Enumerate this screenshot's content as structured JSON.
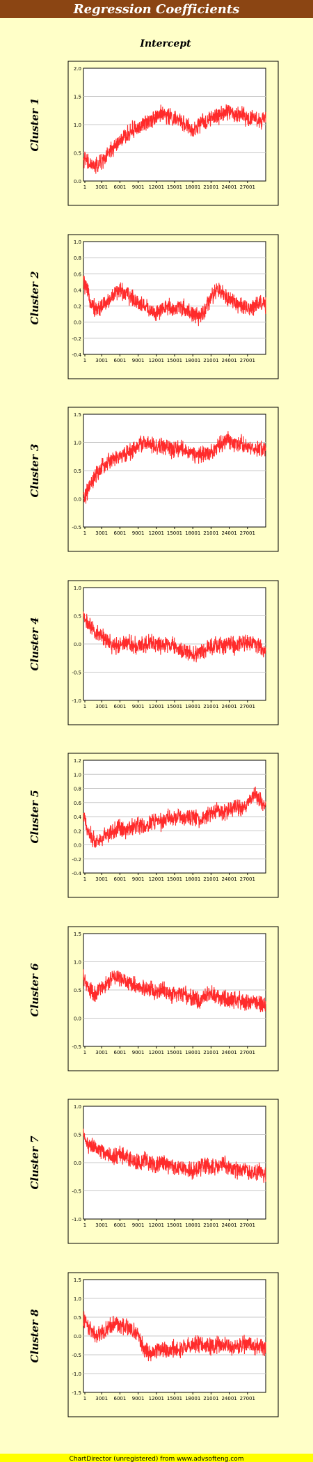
{
  "header": {
    "title": "Regression Coefficients"
  },
  "subtitle": "Intercept",
  "footer": {
    "text": "ChartDirector (unregistered) from www.advsofteng.com"
  },
  "colors": {
    "background": "#ffffc8",
    "header": "#8b4513",
    "header_text": "#ffffff",
    "line": "#ff2b2b",
    "grid": "#c8c8c8",
    "footer_bg": "#ffff00"
  },
  "chart_data": [
    {
      "type": "line",
      "title": "Cluster 1",
      "x_tick_labels": [
        "1",
        "3001",
        "6001",
        "9001",
        "12001",
        "15001",
        "18001",
        "21001",
        "24001",
        "27001"
      ],
      "y_tick_labels": [
        "0.0",
        "0.5",
        "1.0",
        "1.5",
        "2.0"
      ],
      "ylim": [
        0.0,
        2.0
      ],
      "xlim": [
        1,
        30000
      ],
      "grid": true,
      "series": [
        {
          "x": [
            1,
            1000,
            2000,
            3000,
            4000,
            5000,
            6000,
            7000,
            8000,
            9000,
            10000,
            11000,
            12000,
            13000,
            14000,
            15000,
            16000,
            17000,
            18000,
            19000,
            20000,
            21000,
            22000,
            23000,
            24000,
            25000,
            26000,
            27000,
            28000,
            29000,
            30000
          ],
          "y": [
            0.4,
            0.3,
            0.25,
            0.35,
            0.45,
            0.6,
            0.7,
            0.8,
            0.9,
            0.95,
            1.0,
            1.1,
            1.15,
            1.2,
            1.15,
            1.1,
            1.05,
            1.0,
            0.85,
            1.0,
            1.05,
            1.1,
            1.15,
            1.2,
            1.25,
            1.15,
            1.2,
            1.1,
            1.15,
            1.05,
            1.1
          ]
        }
      ]
    },
    {
      "type": "line",
      "title": "Cluster 2",
      "x_tick_labels": [
        "1",
        "3001",
        "6001",
        "9001",
        "12001",
        "15001",
        "18001",
        "21001",
        "24001",
        "27001"
      ],
      "y_tick_labels": [
        "-0.4",
        "-0.2",
        "0.0",
        "0.2",
        "0.4",
        "0.6",
        "0.8",
        "1.0"
      ],
      "ylim": [
        -0.4,
        1.0
      ],
      "xlim": [
        1,
        30000
      ],
      "grid": true,
      "series": [
        {
          "x": [
            1,
            1000,
            2000,
            3000,
            4000,
            5000,
            6000,
            7000,
            8000,
            9000,
            10000,
            11000,
            12000,
            13000,
            14000,
            15000,
            16000,
            17000,
            18000,
            19000,
            20000,
            21000,
            22000,
            23000,
            24000,
            25000,
            26000,
            27000,
            28000,
            29000,
            30000
          ],
          "y": [
            0.5,
            0.3,
            0.15,
            0.2,
            0.25,
            0.35,
            0.4,
            0.35,
            0.3,
            0.25,
            0.2,
            0.15,
            0.1,
            0.15,
            0.2,
            0.15,
            0.2,
            0.15,
            0.1,
            0.05,
            0.15,
            0.3,
            0.4,
            0.35,
            0.3,
            0.25,
            0.2,
            0.15,
            0.2,
            0.25,
            0.2
          ]
        }
      ]
    },
    {
      "type": "line",
      "title": "Cluster 3",
      "x_tick_labels": [
        "1",
        "3001",
        "6001",
        "9001",
        "12001",
        "15001",
        "18001",
        "21001",
        "24001",
        "27001"
      ],
      "y_tick_labels": [
        "-0.5",
        "0.0",
        "0.5",
        "1.0",
        "1.5"
      ],
      "ylim": [
        -0.5,
        1.5
      ],
      "xlim": [
        1,
        30000
      ],
      "grid": true,
      "series": [
        {
          "x": [
            1,
            1000,
            2000,
            3000,
            4000,
            5000,
            6000,
            7000,
            8000,
            9000,
            10000,
            11000,
            12000,
            13000,
            14000,
            15000,
            16000,
            17000,
            18000,
            19000,
            20000,
            21000,
            22000,
            23000,
            24000,
            25000,
            26000,
            27000,
            28000,
            29000,
            30000
          ],
          "y": [
            0.0,
            0.2,
            0.4,
            0.55,
            0.65,
            0.7,
            0.75,
            0.8,
            0.85,
            0.95,
            1.0,
            0.95,
            0.9,
            0.95,
            0.9,
            0.85,
            0.9,
            0.85,
            0.8,
            0.75,
            0.8,
            0.85,
            0.9,
            1.0,
            1.05,
            0.95,
            1.0,
            0.9,
            0.85,
            0.9,
            0.9
          ]
        }
      ]
    },
    {
      "type": "line",
      "title": "Cluster 4",
      "x_tick_labels": [
        "1",
        "3001",
        "6001",
        "9001",
        "12001",
        "15001",
        "18001",
        "21001",
        "24001",
        "27001"
      ],
      "y_tick_labels": [
        "-1.0",
        "-0.5",
        "0.0",
        "0.5",
        "1.0"
      ],
      "ylim": [
        -1.0,
        1.0
      ],
      "xlim": [
        1,
        30000
      ],
      "grid": true,
      "series": [
        {
          "x": [
            1,
            1000,
            2000,
            3000,
            4000,
            5000,
            6000,
            7000,
            8000,
            9000,
            10000,
            11000,
            12000,
            13000,
            14000,
            15000,
            16000,
            17000,
            18000,
            19000,
            20000,
            21000,
            22000,
            23000,
            24000,
            25000,
            26000,
            27000,
            28000,
            29000,
            30000
          ],
          "y": [
            0.5,
            0.3,
            0.2,
            0.15,
            0.05,
            -0.05,
            0.0,
            0.05,
            0.0,
            -0.05,
            0.0,
            0.05,
            0.0,
            -0.05,
            0.0,
            -0.05,
            -0.1,
            -0.15,
            -0.2,
            -0.15,
            -0.1,
            -0.05,
            0.0,
            -0.05,
            0.0,
            -0.05,
            0.0,
            0.05,
            0.0,
            -0.05,
            -0.1
          ]
        }
      ]
    },
    {
      "type": "line",
      "title": "Cluster 5",
      "x_tick_labels": [
        "1",
        "3001",
        "6001",
        "9001",
        "12001",
        "15001",
        "18001",
        "21001",
        "24001",
        "27001"
      ],
      "y_tick_labels": [
        "-0.4",
        "-0.2",
        "0.0",
        "0.2",
        "0.4",
        "0.6",
        "0.8",
        "1.0",
        "1.2"
      ],
      "ylim": [
        -0.4,
        1.2
      ],
      "xlim": [
        1,
        30000
      ],
      "grid": true,
      "series": [
        {
          "x": [
            1,
            1000,
            2000,
            3000,
            4000,
            5000,
            6000,
            7000,
            8000,
            9000,
            10000,
            11000,
            12000,
            13000,
            14000,
            15000,
            16000,
            17000,
            18000,
            19000,
            20000,
            21000,
            22000,
            23000,
            24000,
            25000,
            26000,
            27000,
            28000,
            29000,
            30000
          ],
          "y": [
            0.4,
            0.15,
            0.05,
            0.1,
            0.15,
            0.2,
            0.25,
            0.2,
            0.25,
            0.3,
            0.25,
            0.3,
            0.35,
            0.3,
            0.4,
            0.35,
            0.4,
            0.35,
            0.4,
            0.35,
            0.4,
            0.45,
            0.5,
            0.45,
            0.5,
            0.55,
            0.5,
            0.6,
            0.7,
            0.65,
            0.55
          ]
        }
      ]
    },
    {
      "type": "line",
      "title": "Cluster 6",
      "x_tick_labels": [
        "1",
        "3001",
        "6001",
        "9001",
        "12001",
        "15001",
        "18001",
        "21001",
        "24001",
        "27001"
      ],
      "y_tick_labels": [
        "-0.5",
        "0.0",
        "0.5",
        "1.0",
        "1.5"
      ],
      "ylim": [
        -0.5,
        1.5
      ],
      "xlim": [
        1,
        30000
      ],
      "grid": true,
      "series": [
        {
          "x": [
            1,
            1000,
            2000,
            3000,
            4000,
            5000,
            6000,
            7000,
            8000,
            9000,
            10000,
            11000,
            12000,
            13000,
            14000,
            15000,
            16000,
            17000,
            18000,
            19000,
            20000,
            21000,
            22000,
            23000,
            24000,
            25000,
            26000,
            27000,
            28000,
            29000,
            30000
          ],
          "y": [
            0.7,
            0.5,
            0.4,
            0.55,
            0.6,
            0.75,
            0.7,
            0.65,
            0.6,
            0.55,
            0.5,
            0.55,
            0.45,
            0.5,
            0.45,
            0.4,
            0.45,
            0.4,
            0.35,
            0.3,
            0.4,
            0.45,
            0.4,
            0.35,
            0.3,
            0.35,
            0.3,
            0.25,
            0.3,
            0.25,
            0.2
          ]
        }
      ]
    },
    {
      "type": "line",
      "title": "Cluster 7",
      "x_tick_labels": [
        "1",
        "3001",
        "6001",
        "9001",
        "12001",
        "15001",
        "18001",
        "21001",
        "24001",
        "27001"
      ],
      "y_tick_labels": [
        "-1.0",
        "-0.5",
        "0.0",
        "0.5",
        "1.0"
      ],
      "ylim": [
        -1.0,
        1.0
      ],
      "xlim": [
        1,
        30000
      ],
      "grid": true,
      "series": [
        {
          "x": [
            1,
            1000,
            2000,
            3000,
            4000,
            5000,
            6000,
            7000,
            8000,
            9000,
            10000,
            11000,
            12000,
            13000,
            14000,
            15000,
            16000,
            17000,
            18000,
            19000,
            20000,
            21000,
            22000,
            23000,
            24000,
            25000,
            26000,
            27000,
            28000,
            29000,
            30000
          ],
          "y": [
            0.45,
            0.3,
            0.25,
            0.2,
            0.15,
            0.1,
            0.15,
            0.1,
            0.05,
            0.0,
            0.05,
            0.0,
            -0.05,
            0.0,
            -0.05,
            -0.1,
            -0.05,
            -0.1,
            -0.15,
            -0.1,
            -0.05,
            -0.1,
            -0.05,
            0.0,
            -0.1,
            -0.15,
            -0.1,
            -0.15,
            -0.2,
            -0.15,
            -0.25
          ]
        }
      ]
    },
    {
      "type": "line",
      "title": "Cluster 8",
      "x_tick_labels": [
        "1",
        "3001",
        "6001",
        "9001",
        "12001",
        "15001",
        "18001",
        "21001",
        "24001",
        "27001"
      ],
      "y_tick_labels": [
        "-1.5",
        "-1.0",
        "-0.5",
        "0.0",
        "0.5",
        "1.0",
        "1.5"
      ],
      "ylim": [
        -1.5,
        1.5
      ],
      "xlim": [
        1,
        30000
      ],
      "grid": true,
      "series": [
        {
          "x": [
            1,
            1000,
            2000,
            3000,
            4000,
            5000,
            6000,
            7000,
            8000,
            9000,
            10000,
            11000,
            12000,
            13000,
            14000,
            15000,
            16000,
            17000,
            18000,
            19000,
            20000,
            21000,
            22000,
            23000,
            24000,
            25000,
            26000,
            27000,
            28000,
            29000,
            30000
          ],
          "y": [
            0.5,
            0.2,
            0.05,
            0.1,
            0.2,
            0.35,
            0.3,
            0.25,
            0.15,
            0.0,
            -0.35,
            -0.45,
            -0.4,
            -0.35,
            -0.4,
            -0.3,
            -0.35,
            -0.3,
            -0.25,
            -0.2,
            -0.25,
            -0.3,
            -0.25,
            -0.2,
            -0.25,
            -0.3,
            -0.25,
            -0.2,
            -0.25,
            -0.3,
            -0.35
          ]
        }
      ]
    }
  ]
}
